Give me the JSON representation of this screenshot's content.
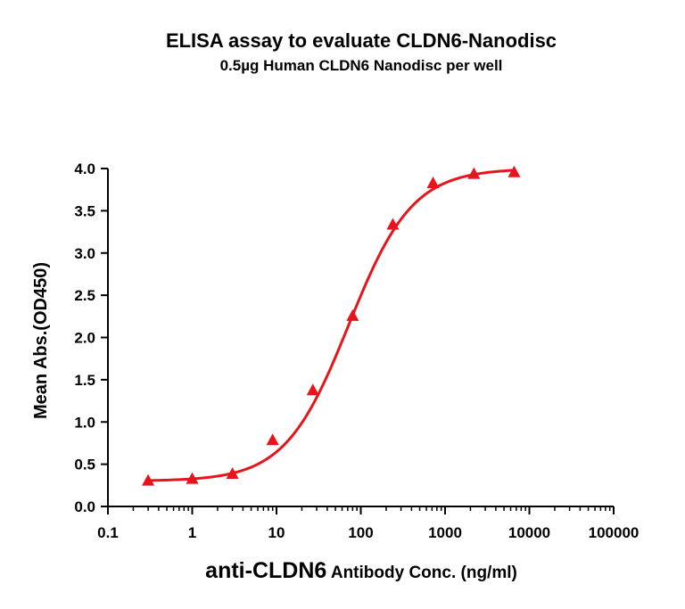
{
  "chart_data": {
    "type": "scatter",
    "title": "ELISA assay to evaluate CLDN6-Nanodisc",
    "subtitle": "0.5µg Human CLDN6 Nanodisc per well",
    "xlabel_main": "anti-CLDN6",
    "xlabel_rest": " Antibody Conc. (ng/ml)",
    "ylabel": "Mean Abs.(OD450)",
    "x_scale": "log",
    "xlim": [
      0.1,
      100000
    ],
    "ylim": [
      0,
      4.0
    ],
    "x_ticks": [
      0.1,
      1,
      10,
      100,
      1000,
      10000,
      100000
    ],
    "x_tick_labels": [
      "0.1",
      "1",
      "10",
      "100",
      "1000",
      "10000",
      "100000"
    ],
    "y_ticks": [
      0,
      0.5,
      1.0,
      1.5,
      2.0,
      2.5,
      3.0,
      3.5,
      4.0
    ],
    "y_tick_labels": [
      "0.0",
      "0.5",
      "1.0",
      "1.5",
      "2.0",
      "2.5",
      "3.0",
      "3.5",
      "4.0"
    ],
    "grid": false,
    "series": [
      {
        "marker": "triangle",
        "color": "#e8141b",
        "x": [
          0.3,
          1,
          3,
          9,
          27,
          80,
          240,
          720,
          2200,
          6600
        ],
        "y": [
          0.3,
          0.32,
          0.38,
          0.78,
          1.37,
          2.25,
          3.33,
          3.82,
          3.93,
          3.95
        ]
      }
    ],
    "fit_curve": {
      "type": "4PL",
      "color": "#e8141b",
      "bottom": 0.3,
      "top": 4.0,
      "ec50": 72,
      "hill": 1.15,
      "x_range": [
        0.3,
        6600
      ]
    }
  }
}
